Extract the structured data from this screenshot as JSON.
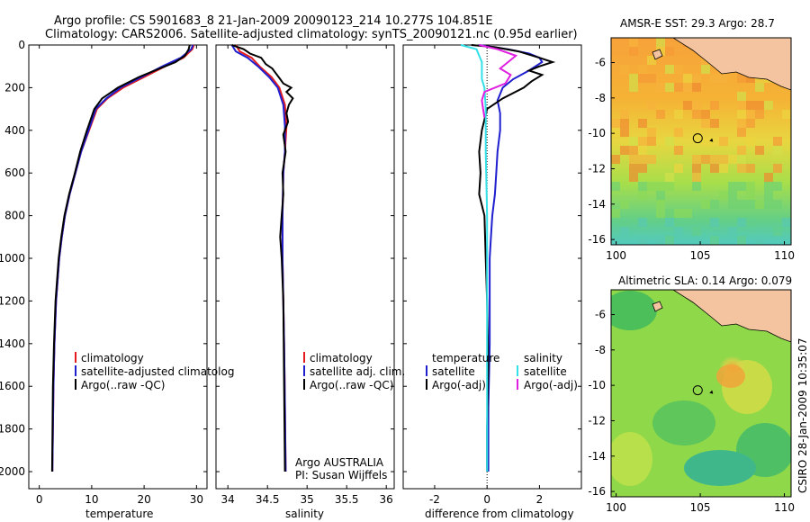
{
  "header": {
    "line1": "Argo profile: CS 5901683_8 21-Jan-2009 20090123_214 10.277S 104.851E",
    "line2": "Climatology: CARS2006. Satellite-adjusted climatology: synTS_20090121.nc (0.95d earlier)"
  },
  "credit": "CSIRO 28-Jan-2009 10:35:07",
  "colors": {
    "climatology": "#e41a1c",
    "satellite": "#1f1fd0",
    "argo": "#000000",
    "salinity_sat": "#33e0e8",
    "salinity_argo": "#e020e0"
  },
  "chart_data": [
    {
      "type": "line",
      "id": "temperature",
      "xlabel": "temperature",
      "ylabel": "",
      "xlim": [
        -2,
        32
      ],
      "ylim": [
        2080,
        0
      ],
      "xticks": [
        0,
        10,
        20,
        30
      ],
      "yticks": [
        0,
        200,
        400,
        600,
        800,
        1000,
        1200,
        1400,
        1600,
        1800,
        2000
      ],
      "legend": [
        "climatology",
        "satellite-adjusted climatolog",
        "Argo(..raw -QC)"
      ],
      "series": [
        {
          "name": "climatology",
          "color": "#e41a1c",
          "x": [
            29.5,
            29.2,
            27.5,
            24,
            20,
            16,
            13,
            11,
            9.5,
            8,
            6.9,
            5.8,
            4.9,
            4.3,
            3.8,
            3.2,
            2.9,
            2.7,
            2.5
          ],
          "y": [
            0,
            20,
            60,
            100,
            150,
            200,
            250,
            300,
            400,
            500,
            600,
            700,
            800,
            900,
            1000,
            1200,
            1400,
            1600,
            2000
          ]
        },
        {
          "name": "satellite-adjusted climatology",
          "color": "#1f1fd0",
          "x": [
            29.3,
            29.0,
            27.0,
            23.5,
            19.5,
            15.5,
            12.8,
            10.8,
            9.4,
            8,
            6.9,
            5.8,
            4.9,
            4.3,
            3.8,
            3.2,
            2.9,
            2.7,
            2.5
          ],
          "y": [
            0,
            20,
            60,
            100,
            150,
            200,
            250,
            300,
            400,
            500,
            600,
            700,
            800,
            900,
            1000,
            1200,
            1400,
            1600,
            2000
          ]
        },
        {
          "name": "Argo(..raw -QC)",
          "color": "#000000",
          "x": [
            28.7,
            28.5,
            27.8,
            26,
            23,
            19,
            15,
            12,
            10.5,
            9.1,
            7.8,
            6.8,
            5.7,
            4.8,
            4.2,
            3.7,
            3.1,
            2.8,
            2.6,
            2.45
          ],
          "y": [
            0,
            20,
            50,
            80,
            110,
            150,
            200,
            250,
            300,
            400,
            500,
            600,
            700,
            800,
            900,
            1000,
            1200,
            1400,
            1600,
            2000
          ]
        }
      ]
    },
    {
      "type": "line",
      "id": "salinity",
      "xlabel": "salinity",
      "xlim": [
        33.85,
        36.1
      ],
      "ylim": [
        2080,
        0
      ],
      "xticks": [
        34,
        34.5,
        35,
        35.5,
        36
      ],
      "xticklabels": [
        "34",
        "34.5",
        "35",
        "35.5",
        "36"
      ],
      "legend": [
        "climatology",
        "satellite adj. clim.",
        "Argo(..raw -QC)"
      ],
      "annotation": [
        "Argo AUSTRALIA",
        "PI: Susan Wijffels"
      ],
      "series": [
        {
          "name": "climatology",
          "color": "#e41a1c",
          "x": [
            34.1,
            34.15,
            34.3,
            34.4,
            34.55,
            34.65,
            34.72,
            34.74,
            34.72,
            34.7,
            34.69,
            34.69,
            34.7,
            34.71,
            34.72,
            34.73
          ],
          "y": [
            0,
            30,
            60,
            100,
            150,
            200,
            280,
            380,
            500,
            600,
            800,
            1000,
            1200,
            1400,
            1700,
            2000
          ]
        },
        {
          "name": "satellite adj. clim.",
          "color": "#1f1fd0",
          "x": [
            34.05,
            34.1,
            34.25,
            34.38,
            34.52,
            34.63,
            34.7,
            34.72,
            34.72,
            34.7,
            34.69,
            34.69,
            34.7,
            34.71,
            34.72,
            34.73
          ],
          "y": [
            0,
            30,
            60,
            100,
            150,
            200,
            280,
            380,
            500,
            600,
            800,
            1000,
            1200,
            1400,
            1700,
            2000
          ]
        },
        {
          "name": "Argo(..raw -QC)",
          "color": "#000000",
          "x": [
            34.05,
            34.2,
            34.28,
            34.42,
            34.48,
            34.56,
            34.62,
            34.66,
            34.7,
            34.8,
            34.74,
            34.82,
            34.77,
            34.74,
            34.76,
            34.7,
            34.73,
            34.69,
            34.7,
            34.68,
            34.66,
            34.68,
            34.7,
            34.71,
            34.72
          ],
          "y": [
            0,
            20,
            40,
            60,
            90,
            110,
            140,
            160,
            180,
            200,
            220,
            250,
            280,
            320,
            360,
            420,
            500,
            600,
            700,
            800,
            900,
            1000,
            1200,
            1600,
            2000
          ]
        }
      ]
    },
    {
      "type": "line",
      "id": "difference",
      "xlabel": "difference from climatology",
      "xlim": [
        -3.2,
        3.6
      ],
      "ylim": [
        2080,
        0
      ],
      "xticks": [
        -2,
        0,
        2
      ],
      "xticklabels": [
        "-2",
        "0",
        "2"
      ],
      "legend_left_title": "temperature",
      "legend_right_title": "salinity",
      "legend_left": [
        "satellite",
        "Argo(-adj)"
      ],
      "legend_right": [
        "satellite",
        "Argo(-adj)"
      ],
      "series": [
        {
          "name": "temperature satellite",
          "color": "#1f1fd0",
          "x": [
            -0.3,
            0.8,
            1.6,
            2.0,
            2.1,
            1.6,
            1.0,
            0.6,
            0.4,
            0.5,
            0.5,
            0.4,
            0.35,
            0.3,
            0.2,
            0.15,
            0.1,
            0.1,
            0.1,
            0.05,
            0.05
          ],
          "y": [
            0,
            20,
            40,
            60,
            80,
            120,
            160,
            200,
            260,
            320,
            400,
            500,
            600,
            700,
            800,
            900,
            1000,
            1200,
            1400,
            1700,
            2000
          ]
        },
        {
          "name": "temperature Argo(-adj)",
          "color": "#000000",
          "x": [
            -0.6,
            0.3,
            1.2,
            2.0,
            2.5,
            2.0,
            1.6,
            2.1,
            1.7,
            1.4,
            0.6,
            0.0,
            -0.2,
            -0.3,
            -0.25,
            -0.3,
            -0.1,
            -0.05,
            0.0,
            0.05,
            0.0,
            0.0
          ],
          "y": [
            0,
            10,
            30,
            60,
            80,
            100,
            120,
            140,
            170,
            200,
            250,
            300,
            400,
            500,
            600,
            700,
            800,
            1000,
            1200,
            1500,
            1800,
            2000
          ]
        },
        {
          "name": "salinity satellite",
          "color": "#33e0e8",
          "x": [
            -1.0,
            -0.4,
            -0.3,
            -0.2,
            -0.2,
            -0.2,
            -0.1,
            -0.05,
            -0.05,
            0.0,
            0.0,
            0.0,
            0.0
          ],
          "y": [
            0,
            20,
            50,
            80,
            120,
            160,
            200,
            300,
            500,
            800,
            1200,
            1600,
            2000
          ]
        },
        {
          "name": "salinity Argo(-adj)",
          "color": "#e020e0",
          "x": [
            -0.3,
            0.4,
            1.1,
            0.8,
            0.5,
            0.9,
            0.7,
            -0.1,
            -0.2,
            -0.15,
            -0.1
          ],
          "y": [
            0,
            20,
            50,
            80,
            110,
            140,
            180,
            220,
            260,
            300,
            340
          ]
        }
      ]
    },
    {
      "type": "heatmap",
      "id": "sst",
      "title": "AMSR-E SST: 29.3 Argo: 28.7",
      "xlim": [
        99.7,
        110.4
      ],
      "ylim": [
        -16.3,
        -4.6
      ],
      "xticks": [
        100,
        105,
        110
      ],
      "yticks": [
        -6,
        -8,
        -10,
        -12,
        -14,
        -16
      ],
      "marker": {
        "lon": 104.851,
        "lat": -10.277
      }
    },
    {
      "type": "heatmap",
      "id": "sla",
      "title": "Altimetric SLA: 0.14 Argo: 0.079",
      "xlim": [
        99.7,
        110.4
      ],
      "ylim": [
        -16.3,
        -4.6
      ],
      "xticks": [
        100,
        105,
        110
      ],
      "yticks": [
        -6,
        -8,
        -10,
        -12,
        -14,
        -16
      ],
      "marker": {
        "lon": 104.851,
        "lat": -10.277
      }
    }
  ]
}
